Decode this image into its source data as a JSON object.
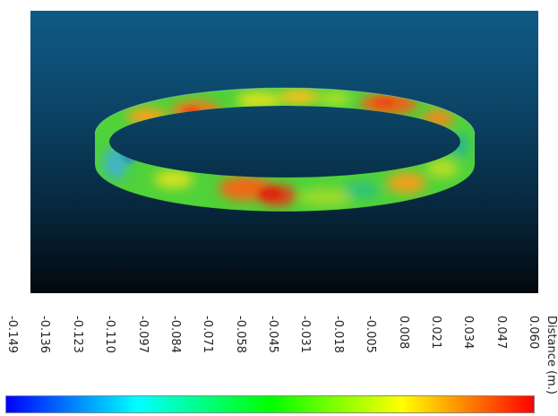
{
  "scale": {
    "title": "Distance (m.)",
    "ticks": [
      "-0.149",
      "-0.136",
      "-0.123",
      "-0.110",
      "-0.097",
      "-0.084",
      "-0.071",
      "-0.058",
      "-0.045",
      "-0.031",
      "-0.018",
      "-0.005",
      "0.008",
      "0.021",
      "0.034",
      "0.047",
      "0.060"
    ],
    "colors": [
      "#0000ff",
      "#0080ff",
      "#00ffff",
      "#00ff80",
      "#00ff00",
      "#80ff00",
      "#ffff00",
      "#ff8000",
      "#ff0000"
    ]
  },
  "viewport": {
    "background_top": "#0f5b86",
    "background_bottom": "#02080d",
    "ring_base_color": "#4fd23a"
  }
}
